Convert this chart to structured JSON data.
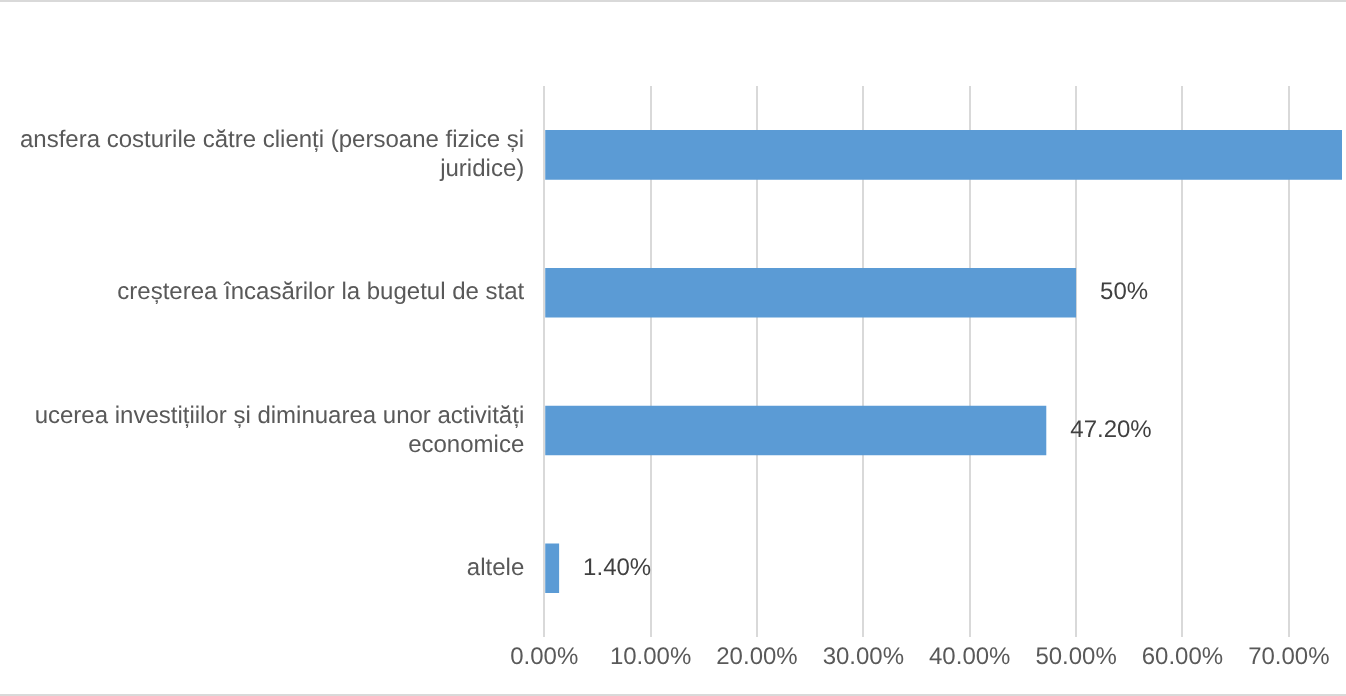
{
  "chart_data": {
    "type": "bar",
    "orientation": "horizontal",
    "categories": [
      "ansfera costurile către clienți (persoane fizice și juridice)",
      "creșterea încasărilor la bugetul de stat",
      "ucerea investițiilor și diminuarea unor activități economice",
      "altele"
    ],
    "values": [
      75,
      50,
      47.2,
      1.4
    ],
    "value_labels": [
      null,
      "50%",
      "47.20%",
      "1.40%"
    ],
    "color": "#5b9bd5",
    "xlim": [
      0,
      75
    ],
    "xticks": [
      {
        "value": 0,
        "label": "0.00%"
      },
      {
        "value": 10,
        "label": "10.00%"
      },
      {
        "value": 20,
        "label": "20.00%"
      },
      {
        "value": 30,
        "label": "30.00%"
      },
      {
        "value": 40,
        "label": "40.00%"
      },
      {
        "value": 50,
        "label": "50.00%"
      },
      {
        "value": 60,
        "label": "60.00%"
      },
      {
        "value": 70,
        "label": "70.00%"
      }
    ],
    "grid": "x"
  }
}
